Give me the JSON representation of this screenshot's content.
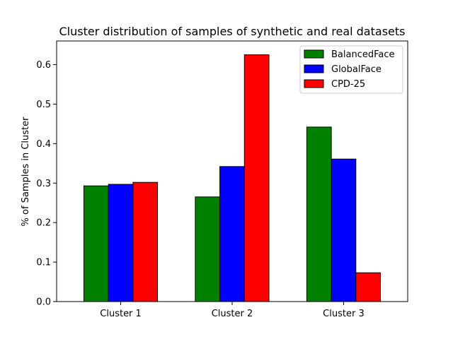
{
  "chart_data": {
    "type": "bar",
    "title": "Cluster distribution of samples of synthetic and real datasets",
    "xlabel": "",
    "ylabel": "% of Samples in Cluster",
    "categories": [
      "Cluster 1",
      "Cluster 2",
      "Cluster 3"
    ],
    "series": [
      {
        "name": "BalancedFace",
        "color": "#008000",
        "values": [
          0.293,
          0.265,
          0.442
        ]
      },
      {
        "name": "GlobalFace",
        "color": "#0000ff",
        "values": [
          0.297,
          0.342,
          0.361
        ]
      },
      {
        "name": "CPD-25",
        "color": "#ff0000",
        "values": [
          0.302,
          0.625,
          0.073
        ]
      }
    ],
    "ylim": [
      0,
      0.66
    ],
    "yticks": [
      "0.0",
      "0.1",
      "0.2",
      "0.3",
      "0.4",
      "0.5",
      "0.6"
    ],
    "grid": false,
    "legend": "top-right"
  }
}
